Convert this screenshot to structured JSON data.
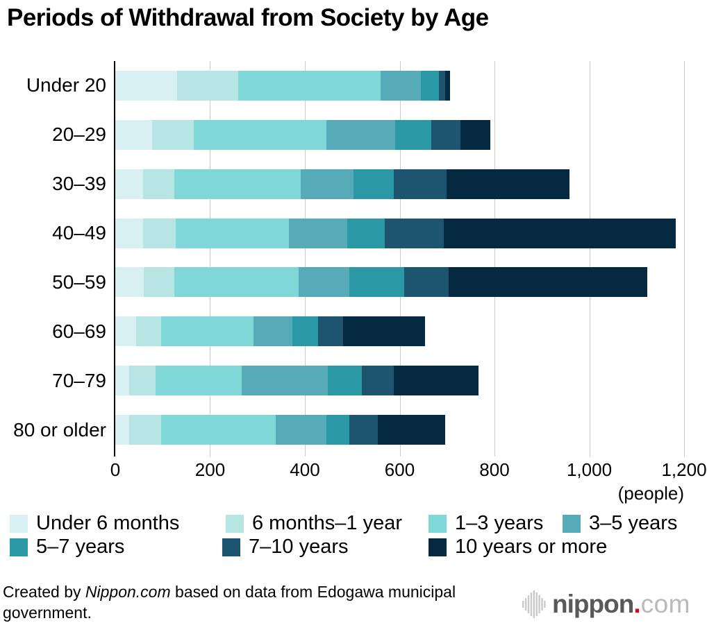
{
  "title": "Periods of Withdrawal from Society by Age",
  "chart_data": {
    "type": "bar",
    "orientation": "horizontal",
    "stacked": true,
    "grid": true,
    "xlim": [
      0,
      1200
    ],
    "x_tick_step": 200,
    "x_ticks": [
      "0",
      "200",
      "400",
      "600",
      "800",
      "1,000",
      "1,200"
    ],
    "x_axis_unit": "(people)",
    "categories": [
      "Under 20",
      "20–29",
      "30–39",
      "40–49",
      "50–59",
      "60–69",
      "70–79",
      "80 or older"
    ],
    "series": [
      {
        "name": "Under 6 months",
        "color": "#d9f0f2",
        "values": [
          131,
          78,
          59,
          59,
          60,
          44,
          30,
          30
        ]
      },
      {
        "name": "6 months–1 year",
        "color": "#b6e5e3",
        "values": [
          129,
          88,
          65,
          69,
          65,
          52,
          55,
          67
        ]
      },
      {
        "name": "1–3 years",
        "color": "#7fd8d7",
        "values": [
          300,
          280,
          267,
          238,
          262,
          195,
          181,
          241
        ]
      },
      {
        "name": "3–5 years",
        "color": "#57abb8",
        "values": [
          85,
          145,
          112,
          124,
          107,
          83,
          183,
          108
        ]
      },
      {
        "name": "5–7 years",
        "color": "#2b98a5",
        "values": [
          38,
          75,
          85,
          79,
          116,
          54,
          71,
          48
        ]
      },
      {
        "name": "7–10 years",
        "color": "#1d5570",
        "values": [
          13,
          62,
          111,
          124,
          93,
          53,
          67,
          60
        ]
      },
      {
        "name": "10 years or more",
        "color": "#052940",
        "values": [
          10,
          63,
          260,
          489,
          419,
          173,
          180,
          142
        ]
      }
    ],
    "totals": [
      706,
      791,
      959,
      1182,
      1122,
      654,
      767,
      696
    ]
  },
  "footer": {
    "credit_prefix": "Created by ",
    "credit_source": "Nippon.com",
    "credit_suffix": " based on data from Edogawa municipal government.",
    "logo": {
      "name_bold": "nippon",
      "dot": ".",
      "name_light": "com"
    }
  }
}
